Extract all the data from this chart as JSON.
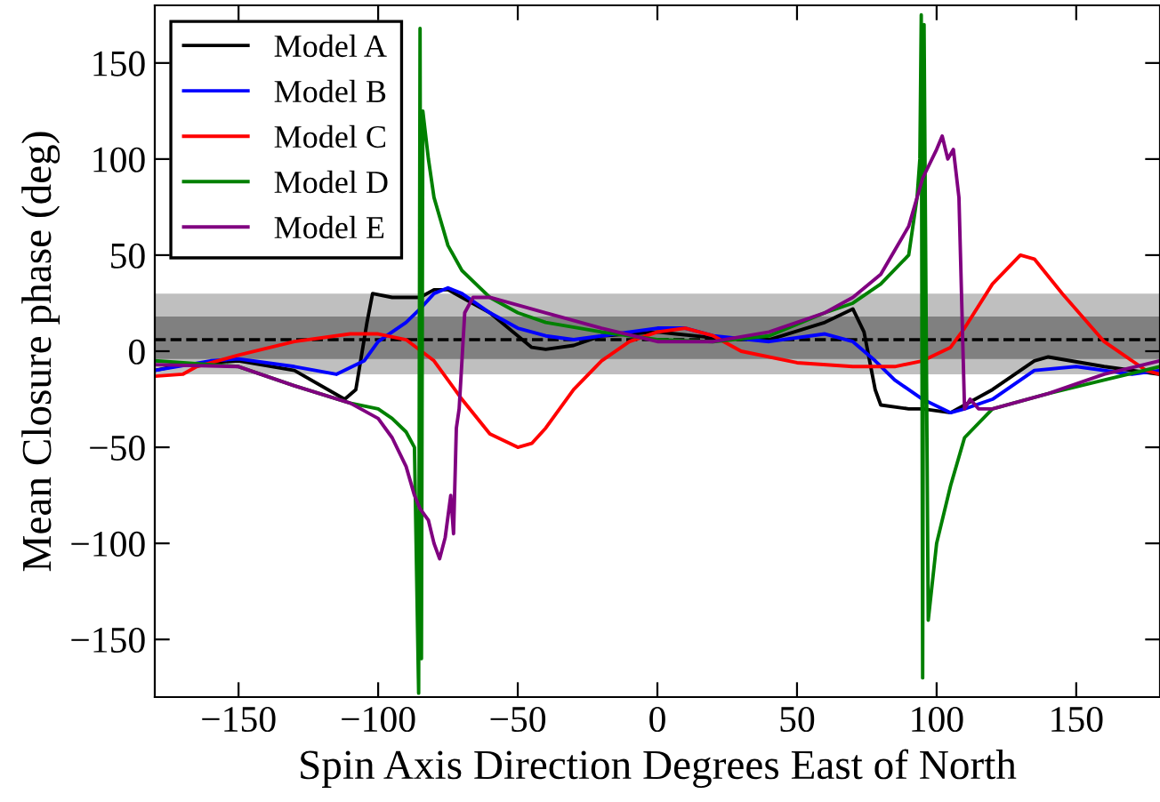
{
  "chart_data": {
    "type": "line",
    "xlabel": "Spin Axis Direction Degrees East of North",
    "ylabel": "Mean Closure phase (deg)",
    "xlim": [
      -180,
      180
    ],
    "ylim": [
      -180,
      180
    ],
    "xticks": [
      {
        "value": -150,
        "label": "−150"
      },
      {
        "value": -100,
        "label": "−100"
      },
      {
        "value": -50,
        "label": "−50"
      },
      0,
      50,
      100,
      150
    ],
    "yticks": [
      {
        "value": -150,
        "label": "−150"
      },
      {
        "value": -100,
        "label": "−100"
      },
      {
        "value": -50,
        "label": "−50"
      },
      0,
      50,
      100,
      150
    ],
    "grid": false,
    "legend": "top left",
    "marker": "none",
    "line_style": "solid",
    "bands": [
      {
        "axis": "y",
        "from": -12,
        "to": 30,
        "label": null,
        "color": "#bfbfbf"
      },
      {
        "axis": "y",
        "from": -4,
        "to": 18,
        "label": null,
        "color": "#808080"
      }
    ],
    "ref_lines": [
      {
        "axis": "y",
        "value": 6,
        "label": null,
        "color": "#000000",
        "line_style": "dashed"
      }
    ],
    "series": [
      {
        "name": "Model A",
        "color": "#000000",
        "x": [
          -180,
          -170,
          -150,
          -130,
          -112,
          -108,
          -104,
          -102,
          -95,
          -85,
          -80,
          -75,
          -70,
          -60,
          -50,
          -45,
          -40,
          -30,
          -20,
          0,
          20,
          40,
          60,
          70,
          74,
          78,
          80,
          90,
          95,
          105,
          120,
          135,
          140,
          160,
          170,
          180
        ],
        "values": [
          -10,
          -7,
          -5,
          -10,
          -25,
          -20,
          15,
          30,
          28,
          28,
          32,
          32,
          28,
          20,
          8,
          2,
          1,
          3,
          8,
          10,
          7,
          6,
          15,
          22,
          10,
          -20,
          -28,
          -30,
          -30,
          -32,
          -20,
          -5,
          -3,
          -8,
          -10,
          -12
        ]
      },
      {
        "name": "Model B",
        "color": "#0000ff",
        "x": [
          -180,
          -160,
          -150,
          -130,
          -115,
          -105,
          -100,
          -90,
          -85,
          -80,
          -75,
          -70,
          -60,
          -50,
          -40,
          -30,
          -20,
          0,
          10,
          20,
          40,
          60,
          70,
          78,
          85,
          95,
          105,
          110,
          120,
          135,
          150,
          170,
          180
        ],
        "values": [
          -10,
          -5,
          -4,
          -8,
          -12,
          -5,
          5,
          15,
          22,
          30,
          33,
          30,
          20,
          12,
          8,
          6,
          8,
          12,
          12,
          8,
          5,
          9,
          5,
          -5,
          -15,
          -25,
          -32,
          -30,
          -25,
          -10,
          -8,
          -12,
          -10
        ]
      },
      {
        "name": "Model C",
        "color": "#ff0000",
        "x": [
          -180,
          -170,
          -165,
          -150,
          -130,
          -110,
          -100,
          -90,
          -80,
          -70,
          -60,
          -50,
          -45,
          -40,
          -30,
          -20,
          -10,
          0,
          10,
          20,
          30,
          50,
          70,
          85,
          95,
          105,
          110,
          120,
          130,
          135,
          145,
          160,
          175,
          180
        ],
        "values": [
          -13,
          -12,
          -8,
          -2,
          5,
          9,
          9,
          6,
          -5,
          -25,
          -43,
          -50,
          -48,
          -40,
          -20,
          -5,
          5,
          10,
          12,
          8,
          0,
          -6,
          -8,
          -8,
          -5,
          2,
          12,
          35,
          50,
          48,
          30,
          5,
          -10,
          -12
        ]
      },
      {
        "name": "Model D",
        "color": "#008000",
        "x": [
          -180,
          -150,
          -130,
          -110,
          -100,
          -95,
          -90,
          -87,
          -85.5,
          -85,
          -84.5,
          -84,
          -82,
          -80,
          -77,
          -75,
          -70,
          -65,
          -60,
          -50,
          -40,
          -20,
          0,
          20,
          40,
          60,
          70,
          80,
          90,
          93,
          94,
          94.5,
          95,
          95.5,
          97,
          100,
          105,
          110,
          120,
          140,
          160,
          180
        ],
        "values": [
          -5,
          -8,
          -18,
          -27,
          -30,
          -35,
          -42,
          -50,
          -178,
          168,
          -160,
          125,
          100,
          80,
          65,
          55,
          42,
          35,
          28,
          20,
          15,
          10,
          6,
          5,
          8,
          20,
          25,
          35,
          50,
          80,
          100,
          175,
          -170,
          170,
          -140,
          -100,
          -70,
          -45,
          -30,
          -22,
          -15,
          -8
        ]
      },
      {
        "name": "Model E",
        "color": "#800080",
        "x": [
          -180,
          -150,
          -130,
          -110,
          -100,
          -95,
          -90,
          -87,
          -85,
          -82,
          -80,
          -78,
          -76,
          -74,
          -73,
          -72,
          -71,
          -70,
          -69,
          -66,
          -60,
          -40,
          -20,
          0,
          20,
          40,
          60,
          70,
          80,
          90,
          95,
          100,
          102,
          104,
          106,
          108,
          110,
          112,
          115,
          120,
          140,
          160,
          180
        ],
        "values": [
          -7,
          -8,
          -18,
          -27,
          -35,
          -45,
          -60,
          -75,
          -82,
          -88,
          -100,
          -108,
          -97,
          -75,
          -95,
          -40,
          -30,
          -5,
          20,
          28,
          28,
          20,
          12,
          5,
          5,
          10,
          20,
          28,
          40,
          65,
          90,
          105,
          112,
          100,
          105,
          80,
          -30,
          -25,
          -30,
          -30,
          -22,
          -12,
          -5
        ]
      }
    ]
  }
}
